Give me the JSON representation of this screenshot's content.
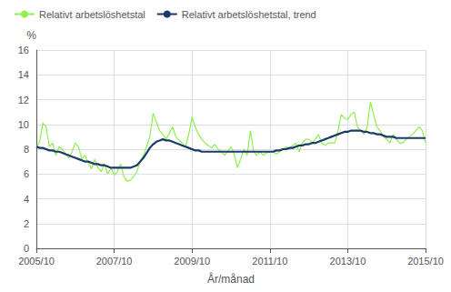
{
  "chart_data": {
    "type": "line",
    "title": "",
    "xlabel": "År/månad",
    "ylabel": "%",
    "categories": [
      "2005/10",
      null,
      null,
      null,
      null,
      null,
      null,
      null,
      null,
      null,
      null,
      null,
      null,
      null,
      null,
      null,
      null,
      null,
      null,
      null,
      null,
      null,
      null,
      null,
      "2007/10",
      null,
      null,
      null,
      null,
      null,
      null,
      null,
      null,
      null,
      null,
      null,
      null,
      null,
      null,
      null,
      null,
      null,
      null,
      null,
      null,
      null,
      null,
      null,
      "2009/10",
      null,
      null,
      null,
      null,
      null,
      null,
      null,
      null,
      null,
      null,
      null,
      null,
      null,
      null,
      null,
      null,
      null,
      null,
      null,
      null,
      null,
      null,
      null,
      "2011/10",
      null,
      null,
      null,
      null,
      null,
      null,
      null,
      null,
      null,
      null,
      null,
      null,
      null,
      null,
      null,
      null,
      null,
      null,
      null,
      null,
      null,
      null,
      null,
      "2013/10",
      null,
      null,
      null,
      null,
      null,
      null,
      null,
      null,
      null,
      null,
      null,
      null,
      null,
      null,
      null,
      null,
      null,
      null,
      null,
      null,
      null,
      null,
      null,
      "2015/10"
    ],
    "series": [
      {
        "name": "Relativt arbetslöshetstal",
        "color": "#90ee50",
        "values": [
          8.1,
          8.6,
          10.1,
          9.8,
          8.2,
          8.5,
          7.5,
          8.2,
          8.0,
          7.6,
          7.3,
          7.8,
          8.5,
          8.2,
          7.2,
          7.5,
          6.9,
          6.4,
          7.2,
          6.5,
          6.2,
          6.8,
          6.0,
          6.5,
          5.9,
          6.2,
          6.8,
          5.8,
          5.4,
          5.5,
          5.8,
          6.2,
          7.0,
          7.5,
          8.2,
          9.0,
          10.9,
          10.2,
          9.5,
          9.2,
          8.8,
          9.3,
          9.8,
          9.0,
          8.7,
          8.5,
          8.2,
          9.2,
          10.6,
          9.8,
          9.2,
          8.8,
          8.5,
          8.3,
          8.1,
          8.4,
          8.0,
          7.8,
          7.5,
          7.8,
          8.2,
          7.6,
          6.5,
          7.2,
          8.0,
          7.5,
          9.5,
          7.8,
          7.5,
          7.8,
          7.5,
          7.7,
          7.8,
          7.8,
          7.6,
          7.8,
          8.0,
          8.2,
          8.0,
          8.3,
          8.5,
          7.8,
          8.5,
          8.8,
          8.8,
          8.5,
          8.8,
          9.2,
          8.5,
          8.3,
          8.5,
          8.5,
          8.5,
          9.5,
          10.8,
          10.5,
          10.4,
          10.8,
          11.0,
          9.8,
          9.5,
          9.2,
          9.8,
          11.8,
          10.8,
          9.8,
          9.5,
          9.0,
          8.8,
          8.5,
          9.2,
          8.8,
          8.5,
          8.5,
          8.8,
          9.0,
          9.2,
          9.5,
          9.8,
          9.5,
          8.5
        ]
      },
      {
        "name": "Relativt arbetslöshetstal, trend",
        "color": "#1a3a6b",
        "values": [
          8.2,
          8.1,
          8.1,
          8.0,
          7.9,
          7.9,
          7.8,
          7.8,
          7.7,
          7.6,
          7.5,
          7.4,
          7.3,
          7.2,
          7.1,
          7.0,
          7.0,
          6.9,
          6.8,
          6.8,
          6.7,
          6.7,
          6.6,
          6.5,
          6.5,
          6.5,
          6.5,
          6.5,
          6.5,
          6.5,
          6.6,
          6.7,
          7.0,
          7.3,
          7.7,
          8.1,
          8.4,
          8.6,
          8.7,
          8.8,
          8.7,
          8.7,
          8.6,
          8.5,
          8.4,
          8.3,
          8.2,
          8.1,
          8.0,
          7.9,
          7.9,
          7.8,
          7.8,
          7.8,
          7.8,
          7.8,
          7.8,
          7.8,
          7.8,
          7.8,
          7.8,
          7.8,
          7.8,
          7.8,
          7.8,
          7.8,
          7.8,
          7.8,
          7.8,
          7.8,
          7.8,
          7.8,
          7.8,
          7.8,
          7.9,
          7.9,
          8.0,
          8.0,
          8.1,
          8.1,
          8.2,
          8.3,
          8.3,
          8.4,
          8.4,
          8.5,
          8.5,
          8.6,
          8.7,
          8.8,
          8.9,
          9.0,
          9.1,
          9.2,
          9.3,
          9.4,
          9.4,
          9.5,
          9.5,
          9.5,
          9.5,
          9.4,
          9.4,
          9.3,
          9.3,
          9.2,
          9.2,
          9.1,
          9.0,
          9.0,
          9.0,
          8.9,
          8.9,
          8.9,
          8.9,
          8.9,
          8.9,
          8.9,
          8.9,
          8.9,
          8.9
        ]
      }
    ],
    "ylim": [
      0,
      16
    ],
    "yticks": [
      0,
      2,
      4,
      6,
      8,
      10,
      12,
      14,
      16
    ],
    "grid": true,
    "legend": "upper left"
  }
}
